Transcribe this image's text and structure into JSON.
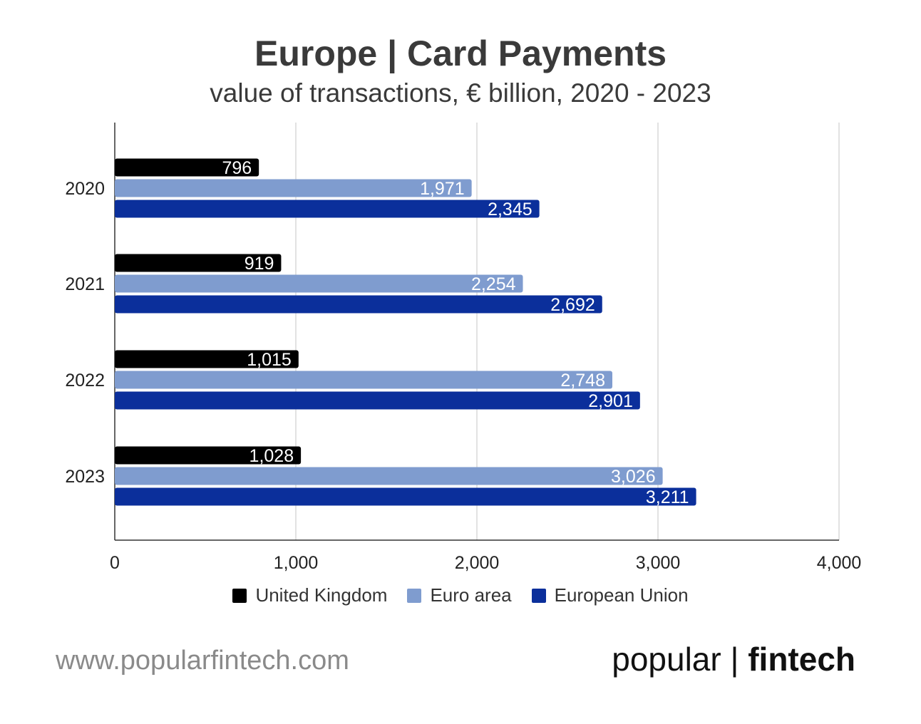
{
  "title": "Europe | Card Payments",
  "subtitle": "value of transactions, € billion, 2020 - 2023",
  "footer": {
    "url": "www.popularfintech.com"
  },
  "brand": {
    "part1": "popular",
    "separator": "|",
    "part2": "fintech"
  },
  "colors": {
    "united_kingdom": "#000000",
    "euro_area": "#7f9ccf",
    "european_union": "#0b2f9b",
    "grid": "#d9d9d9",
    "axis": "#333333"
  },
  "chart_data": {
    "type": "bar",
    "orientation": "horizontal",
    "categories": [
      "2020",
      "2021",
      "2022",
      "2023"
    ],
    "series": [
      {
        "name": "United Kingdom",
        "values": [
          796,
          919,
          1015,
          1028
        ],
        "labels": [
          "796",
          "919",
          "1,015",
          "1,028"
        ]
      },
      {
        "name": "Euro area",
        "values": [
          1971,
          2254,
          2748,
          3026
        ],
        "labels": [
          "1,971",
          "2,254",
          "2,748",
          "3,026"
        ]
      },
      {
        "name": "European Union",
        "values": [
          2345,
          2692,
          2901,
          3211
        ],
        "labels": [
          "2,345",
          "2,692",
          "2,901",
          "3,211"
        ]
      }
    ],
    "xlim": [
      0,
      4000
    ],
    "xticks": [
      0,
      1000,
      2000,
      3000,
      4000
    ],
    "xtick_labels": [
      "0",
      "1,000",
      "2,000",
      "3,000",
      "4,000"
    ],
    "grid": true,
    "legend_position": "bottom"
  }
}
